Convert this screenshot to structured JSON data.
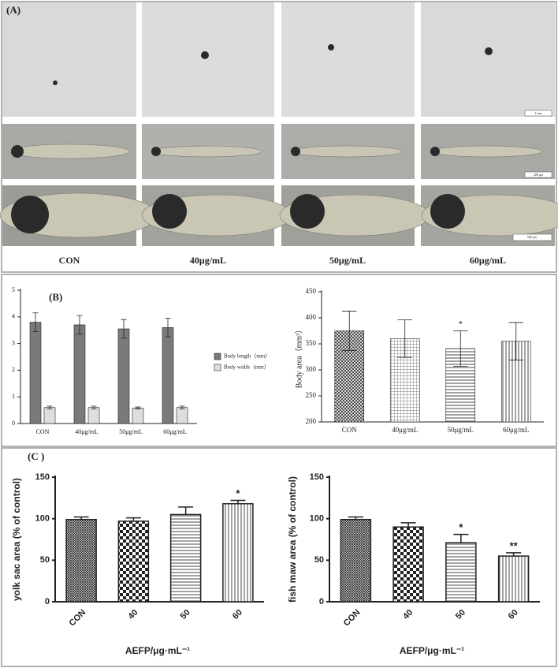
{
  "panel_a": {
    "label": "(A)",
    "columns": [
      "CON",
      "40μg/mL",
      "50μg/mL",
      "60μg/mL"
    ],
    "scale_bars": [
      "1 mm",
      "200 μm",
      "500 μm"
    ]
  },
  "chart_data": [
    {
      "type": "bar",
      "panel_label": "(B)",
      "categories": [
        "CON",
        "40μg/mL",
        "50μg/mL",
        "60μg/mL"
      ],
      "series": [
        {
          "name": "Body length（mm）",
          "color": "#7a7a7a",
          "values": [
            3.8,
            3.7,
            3.55,
            3.6
          ],
          "errors": [
            0.35,
            0.35,
            0.35,
            0.35
          ]
        },
        {
          "name": "Body width（mm）",
          "color": "#dedede",
          "values": [
            0.6,
            0.6,
            0.58,
            0.6
          ],
          "errors": [
            0.05,
            0.05,
            0.04,
            0.05
          ]
        }
      ],
      "ylim": [
        0,
        5
      ],
      "yticks": [
        0,
        1,
        2,
        3,
        4,
        5
      ],
      "legend": "right",
      "error_direction": "both"
    },
    {
      "type": "bar",
      "y_label": "Body area（mm²）",
      "categories": [
        "CON",
        "40μg/mL",
        "50μg/mL",
        "60μg/mL"
      ],
      "series": [
        {
          "values": [
            375,
            360,
            341,
            355
          ],
          "errors": [
            38,
            36,
            34,
            36
          ],
          "patterns": [
            "crosshatch",
            "grid",
            "hlines",
            "vlines"
          ]
        }
      ],
      "significance": [
        null,
        null,
        "*",
        null
      ],
      "ylim": [
        200,
        450
      ],
      "yticks": [
        200,
        250,
        300,
        350,
        400,
        450
      ],
      "error_direction": "both"
    },
    {
      "type": "bar",
      "panel_label": "(C )",
      "y_label": "yolk sac area (% of control)",
      "x_label": "AEFP/μg·mL⁻¹",
      "categories": [
        "CON",
        "40",
        "50",
        "60"
      ],
      "series": [
        {
          "values": [
            99,
            97,
            105,
            118
          ],
          "errors": [
            3,
            4,
            9,
            4
          ],
          "patterns": [
            "dense",
            "checker",
            "hlines",
            "vlines"
          ]
        }
      ],
      "significance": [
        null,
        null,
        null,
        "*"
      ],
      "ylim": [
        0,
        150
      ],
      "yticks": [
        0,
        50,
        100,
        150
      ],
      "error_direction": "up"
    },
    {
      "type": "bar",
      "y_label": "fish maw area (% of control)",
      "x_label": "AEFP/μg·mL⁻¹",
      "categories": [
        "CON",
        "40",
        "50",
        "60"
      ],
      "series": [
        {
          "values": [
            99,
            90,
            71,
            55
          ],
          "errors": [
            3,
            5,
            10,
            4
          ],
          "patterns": [
            "dense",
            "checker",
            "hlines",
            "vlines"
          ]
        }
      ],
      "significance": [
        null,
        null,
        "*",
        "**"
      ],
      "ylim": [
        0,
        150
      ],
      "yticks": [
        0,
        50,
        100,
        150
      ],
      "error_direction": "up"
    }
  ]
}
